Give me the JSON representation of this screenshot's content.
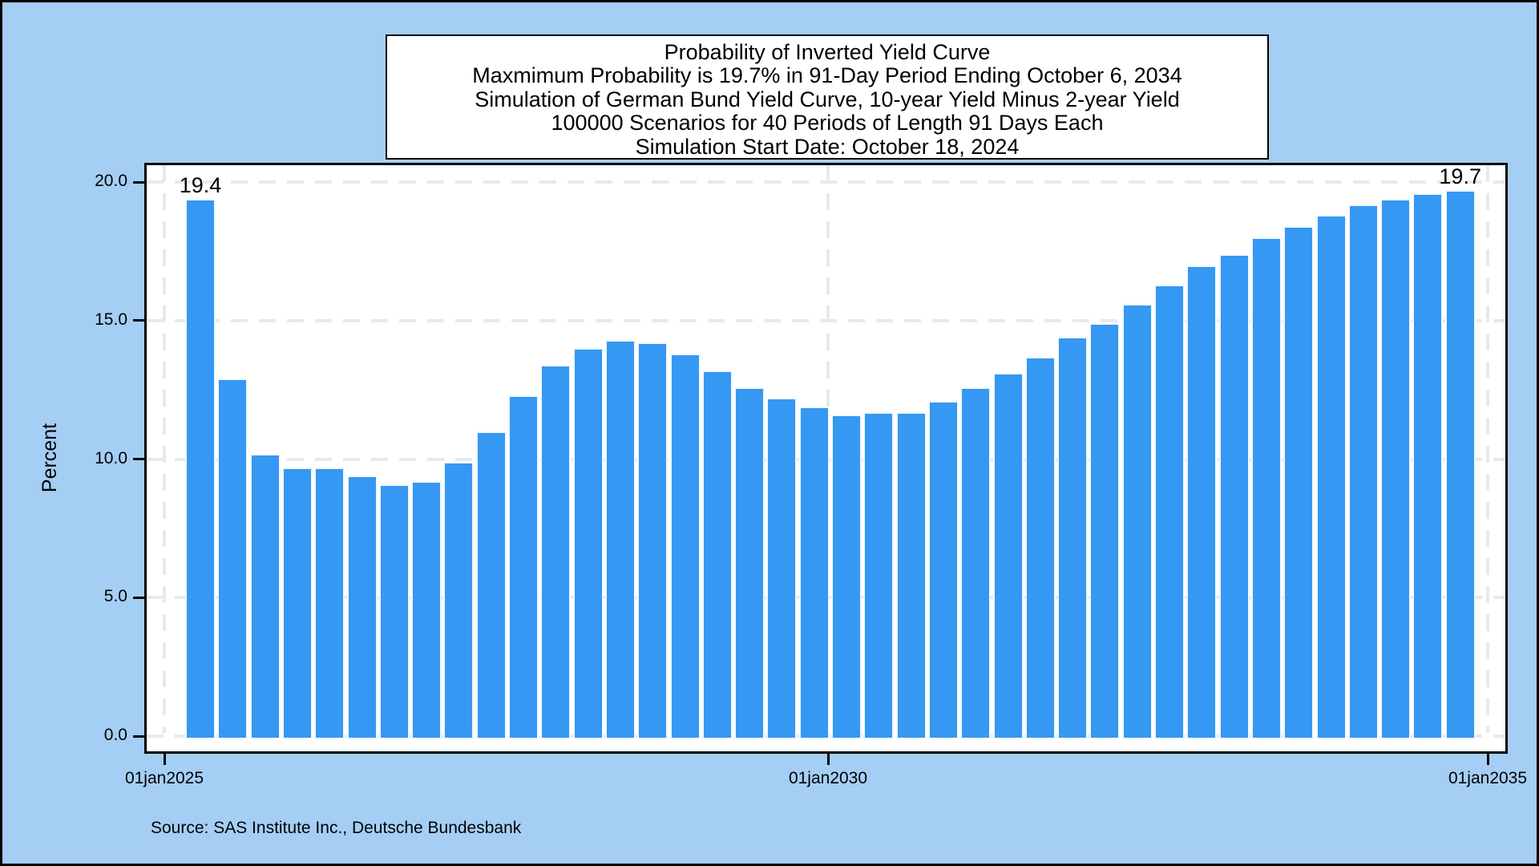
{
  "title_box": {
    "lines": [
      "Probability of Inverted Yield Curve",
      "Maxmimum Probability is 19.7% in 91-Day Period Ending October 6, 2034",
      "Simulation of German Bund Yield Curve, 10-year Yield Minus 2-year Yield",
      "100000 Scenarios for 40 Periods of Length 91 Days Each",
      "Simulation Start Date: October 18, 2024"
    ]
  },
  "source_note": "Source: SAS Institute Inc., Deutsche Bundesbank",
  "chart_data": {
    "type": "bar",
    "title": "Probability of Inverted Yield Curve",
    "ylabel": "Percent",
    "ylim": [
      0,
      20.6
    ],
    "grid": true,
    "legend": "none",
    "x_axis": {
      "tick_labels": [
        "01jan2025",
        "01jan2030",
        "01jan2035"
      ]
    },
    "y_axis": {
      "ticks": [
        0,
        5,
        10,
        15,
        20
      ],
      "tick_labels": [
        "0.0",
        "5.0",
        "10.0",
        "15.0",
        "20.0"
      ]
    },
    "values": [
      19.4,
      12.9,
      10.2,
      9.7,
      9.7,
      9.4,
      9.1,
      9.2,
      9.9,
      11.0,
      12.3,
      13.4,
      14.0,
      14.3,
      14.2,
      13.8,
      13.2,
      12.6,
      12.2,
      11.9,
      11.6,
      11.7,
      11.7,
      12.1,
      12.6,
      13.1,
      13.7,
      14.4,
      14.9,
      15.6,
      16.3,
      17.0,
      17.4,
      18.0,
      18.4,
      18.8,
      19.2,
      19.4,
      19.6,
      19.7
    ],
    "annotations": [
      {
        "bar_index": 0,
        "label": "19.4"
      },
      {
        "bar_index": 39,
        "label": "19.7"
      }
    ],
    "colors": {
      "bar_fill": "#3598f2",
      "bar_edge": "#f2f8ff",
      "background": "#a5cef5",
      "plot_background": "#ffffff",
      "gridline": "#e9e9e9"
    }
  }
}
